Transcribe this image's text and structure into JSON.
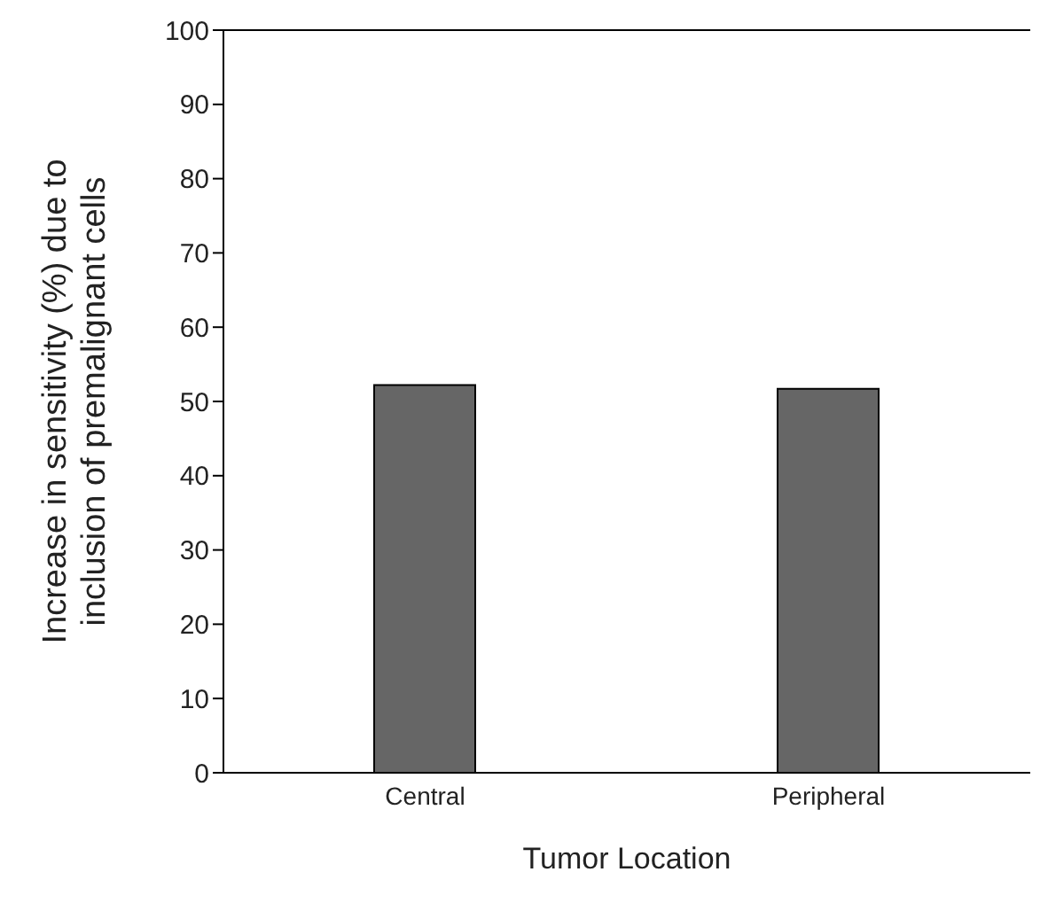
{
  "chart_data": {
    "type": "bar",
    "xlabel": "Tumor Location",
    "ylabel": "Increase in sensitivity (%) due to\ninclusion of premalignant cells",
    "categories": [
      "Central",
      "Peripheral"
    ],
    "values": [
      52.2,
      51.7
    ],
    "color": "#666666",
    "ylim": [
      0,
      100
    ],
    "yticks": [
      0,
      10,
      20,
      30,
      40,
      50,
      60,
      70,
      80,
      90,
      100
    ],
    "grid": false,
    "legend": false
  }
}
